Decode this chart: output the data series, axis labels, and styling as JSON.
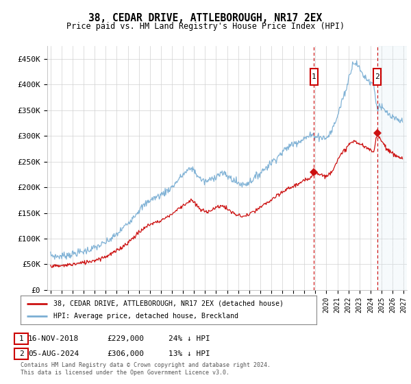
{
  "title1": "38, CEDAR DRIVE, ATTLEBOROUGH, NR17 2EX",
  "title2": "Price paid vs. HM Land Registry's House Price Index (HPI)",
  "ylim": [
    0,
    475000
  ],
  "yticks": [
    0,
    50000,
    100000,
    150000,
    200000,
    250000,
    300000,
    350000,
    400000,
    450000
  ],
  "ytick_labels": [
    "£0",
    "£50K",
    "£100K",
    "£150K",
    "£200K",
    "£250K",
    "£300K",
    "£350K",
    "£400K",
    "£450K"
  ],
  "hpi_color": "#7bafd4",
  "price_color": "#cc1111",
  "transaction1": {
    "date_label": "16-NOV-2018",
    "price": 229000,
    "pct": "24% ↓ HPI",
    "x_year": 2018.88
  },
  "transaction2": {
    "date_label": "05-AUG-2024",
    "price": 306000,
    "pct": "13% ↓ HPI",
    "x_year": 2024.6
  },
  "legend_property": "38, CEDAR DRIVE, ATTLEBOROUGH, NR17 2EX (detached house)",
  "legend_hpi": "HPI: Average price, detached house, Breckland",
  "footnote": "Contains HM Land Registry data © Crown copyright and database right 2024.\nThis data is licensed under the Open Government Licence v3.0.",
  "xmin": 1995,
  "xmax": 2027,
  "grid_color": "#d0d0d0",
  "shade_color": "#d0e4f0"
}
